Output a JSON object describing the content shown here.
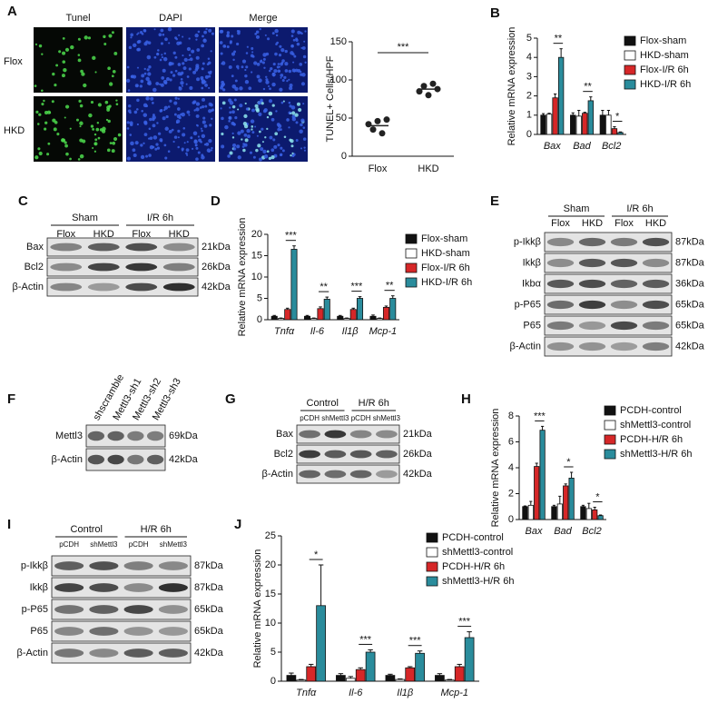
{
  "figure": {
    "A": {
      "label": "A",
      "columns": [
        "Tunel",
        "DAPI",
        "Merge"
      ],
      "rows": [
        "Flox",
        "HKD"
      ]
    },
    "C": {
      "label": "C",
      "groups": [
        "Sham",
        "I/R 6h"
      ],
      "lanes": [
        "Flox",
        "HKD",
        "Flox",
        "HKD"
      ],
      "rows": [
        "Bax",
        "Bcl2",
        "β-Actin"
      ],
      "sizes": [
        "21kDa",
        "26kDa",
        "42kDa"
      ]
    },
    "E": {
      "label": "E",
      "groups": [
        "Sham",
        "I/R 6h"
      ],
      "lanes": [
        "Flox",
        "HKD",
        "Flox",
        "HKD"
      ],
      "rows": [
        "p-Ikkβ",
        "Ikkβ",
        "Ikbα",
        "p-P65",
        "P65",
        "β-Actin"
      ],
      "sizes": [
        "87kDa",
        "87kDa",
        "36kDa",
        "65kDa",
        "65kDa",
        "42kDa"
      ]
    },
    "F": {
      "label": "F",
      "lanes": [
        "shscramble",
        "Mettl3-sh1",
        "Mettl3-sh2",
        "Mettl3-sh3"
      ],
      "rows": [
        "Mettl3",
        "β-Actin"
      ],
      "sizes": [
        "69kDa",
        "42kDa"
      ]
    },
    "G": {
      "label": "G",
      "groups": [
        "Control",
        "H/R 6h"
      ],
      "lanes": [
        "pCDH",
        "shMettl3",
        "pCDH",
        "shMettl3"
      ],
      "rows": [
        "Bax",
        "Bcl2",
        "β-Actin"
      ],
      "sizes": [
        "21kDa",
        "26kDa",
        "42kDa"
      ]
    },
    "I": {
      "label": "I",
      "groups": [
        "Control",
        "H/R 6h"
      ],
      "lanes": [
        "pCDH",
        "shMettl3",
        "pCDH",
        "shMettl3"
      ],
      "rows": [
        "p-Ikkβ",
        "Ikkβ",
        "p-P65",
        "P65",
        "β-Actin"
      ],
      "sizes": [
        "87kDa",
        "87kDa",
        "65kDa",
        "65kDa",
        "42kDa"
      ]
    }
  },
  "chart_data": [
    {
      "type": "dot",
      "y_label": "TUNEL+ Cells/HPF",
      "categories": [
        "Flox",
        "HKD"
      ],
      "values": [
        [
          42,
          35,
          46,
          30,
          48
        ],
        [
          85,
          92,
          80,
          95,
          88
        ]
      ],
      "means": [
        40,
        88
      ],
      "color": "#222222",
      "ylim": [
        0,
        150
      ],
      "yticks": [
        0,
        50,
        100,
        150
      ],
      "significance": "***"
    },
    {
      "type": "bar",
      "panel": "B",
      "y_label": "Relative mRNA expression",
      "categories": [
        "Bax",
        "Bad",
        "Bcl2"
      ],
      "series": [
        {
          "name": "Flox-sham",
          "color": "#111111",
          "values": [
            1,
            1,
            1
          ],
          "errors": [
            0.08,
            0.12,
            0.25
          ]
        },
        {
          "name": "HKD-sham",
          "color": "#ffffff",
          "values": [
            1.05,
            0.95,
            1.0
          ],
          "errors": [
            0.05,
            0.3,
            0.25
          ]
        },
        {
          "name": "Flox-I/R 6h",
          "color": "#d62728",
          "values": [
            1.9,
            1.1,
            0.3
          ],
          "errors": [
            0.2,
            0.05,
            0.1
          ]
        },
        {
          "name": "HKD-I/R 6h",
          "color": "#2a8c9c",
          "values": [
            4.0,
            1.75,
            0.1
          ],
          "errors": [
            0.45,
            0.2,
            0.03
          ]
        }
      ],
      "ylim": [
        0,
        5
      ],
      "yticks": [
        0,
        1,
        2,
        3,
        4,
        5
      ],
      "significance": [
        "**",
        "**",
        "*"
      ]
    },
    {
      "type": "bar",
      "panel": "D",
      "y_label": "Relative mRNA expression",
      "categories": [
        "Tnfα",
        "Il-6",
        "Il1β",
        "Mcp-1"
      ],
      "series": [
        {
          "name": "Flox-sham",
          "color": "#111111",
          "values": [
            0.8,
            0.8,
            0.8,
            0.8
          ],
          "errors": [
            0.2,
            0.2,
            0.2,
            0.3
          ]
        },
        {
          "name": "HKD-sham",
          "color": "#ffffff",
          "values": [
            0.3,
            0.3,
            0.3,
            0.3
          ],
          "errors": [
            0.1,
            0.1,
            0.1,
            0.1
          ]
        },
        {
          "name": "Flox-I/R 6h",
          "color": "#d62728",
          "values": [
            2.4,
            2.6,
            2.4,
            2.9
          ],
          "errors": [
            0.3,
            0.4,
            0.3,
            0.3
          ]
        },
        {
          "name": "HKD-I/R 6h",
          "color": "#2a8c9c",
          "values": [
            16.5,
            4.8,
            5.0,
            5.0
          ],
          "errors": [
            0.8,
            0.5,
            0.4,
            0.6
          ]
        }
      ],
      "ylim": [
        0,
        20
      ],
      "yticks": [
        0,
        5,
        10,
        15,
        20
      ],
      "significance": [
        "***",
        "**",
        "***",
        "**"
      ]
    },
    {
      "type": "bar",
      "panel": "H",
      "y_label": "Relative mRNA expression",
      "categories": [
        "Bax",
        "Bad",
        "Bcl2"
      ],
      "series": [
        {
          "name": "PCDH-control",
          "color": "#111111",
          "values": [
            1,
            1,
            1
          ],
          "errors": [
            0.05,
            0.1,
            0.1
          ]
        },
        {
          "name": "shMettl3-control",
          "color": "#ffffff",
          "values": [
            1.1,
            1.2,
            0.85
          ],
          "errors": [
            0.3,
            0.6,
            0.4
          ]
        },
        {
          "name": "PCDH-H/R 6h",
          "color": "#d62728",
          "values": [
            4.1,
            2.6,
            0.75
          ],
          "errors": [
            0.25,
            0.15,
            0.2
          ]
        },
        {
          "name": "shMettl3-H/R 6h",
          "color": "#2a8c9c",
          "values": [
            6.9,
            3.2,
            0.3
          ],
          "errors": [
            0.3,
            0.45,
            0.05
          ]
        }
      ],
      "ylim": [
        0,
        8
      ],
      "yticks": [
        0,
        2,
        4,
        6,
        8
      ],
      "significance": [
        "***",
        "*",
        "*"
      ]
    },
    {
      "type": "bar",
      "panel": "J",
      "y_label": "Relative mRNA expression",
      "categories": [
        "Tnfα",
        "Il-6",
        "Il1β",
        "Mcp-1"
      ],
      "series": [
        {
          "name": "PCDH-control",
          "color": "#111111",
          "values": [
            1,
            1,
            1,
            1
          ],
          "errors": [
            0.4,
            0.3,
            0.2,
            0.3
          ]
        },
        {
          "name": "shMettl3-control",
          "color": "#ffffff",
          "values": [
            0.2,
            0.5,
            0.3,
            0.2
          ],
          "errors": [
            0.1,
            0.3,
            0.1,
            0.1
          ]
        },
        {
          "name": "PCDH-H/R 6h",
          "color": "#d62728",
          "values": [
            2.5,
            2.0,
            2.3,
            2.5
          ],
          "errors": [
            0.4,
            0.3,
            0.2,
            0.4
          ]
        },
        {
          "name": "shMettl3-H/R 6h",
          "color": "#2a8c9c",
          "values": [
            13,
            5.0,
            4.8,
            7.5
          ],
          "errors": [
            7,
            0.4,
            0.4,
            1.0
          ]
        }
      ],
      "ylim": [
        0,
        25
      ],
      "yticks": [
        0,
        5,
        10,
        15,
        20,
        25
      ],
      "significance": [
        "*",
        "***",
        "***",
        "***"
      ]
    }
  ]
}
